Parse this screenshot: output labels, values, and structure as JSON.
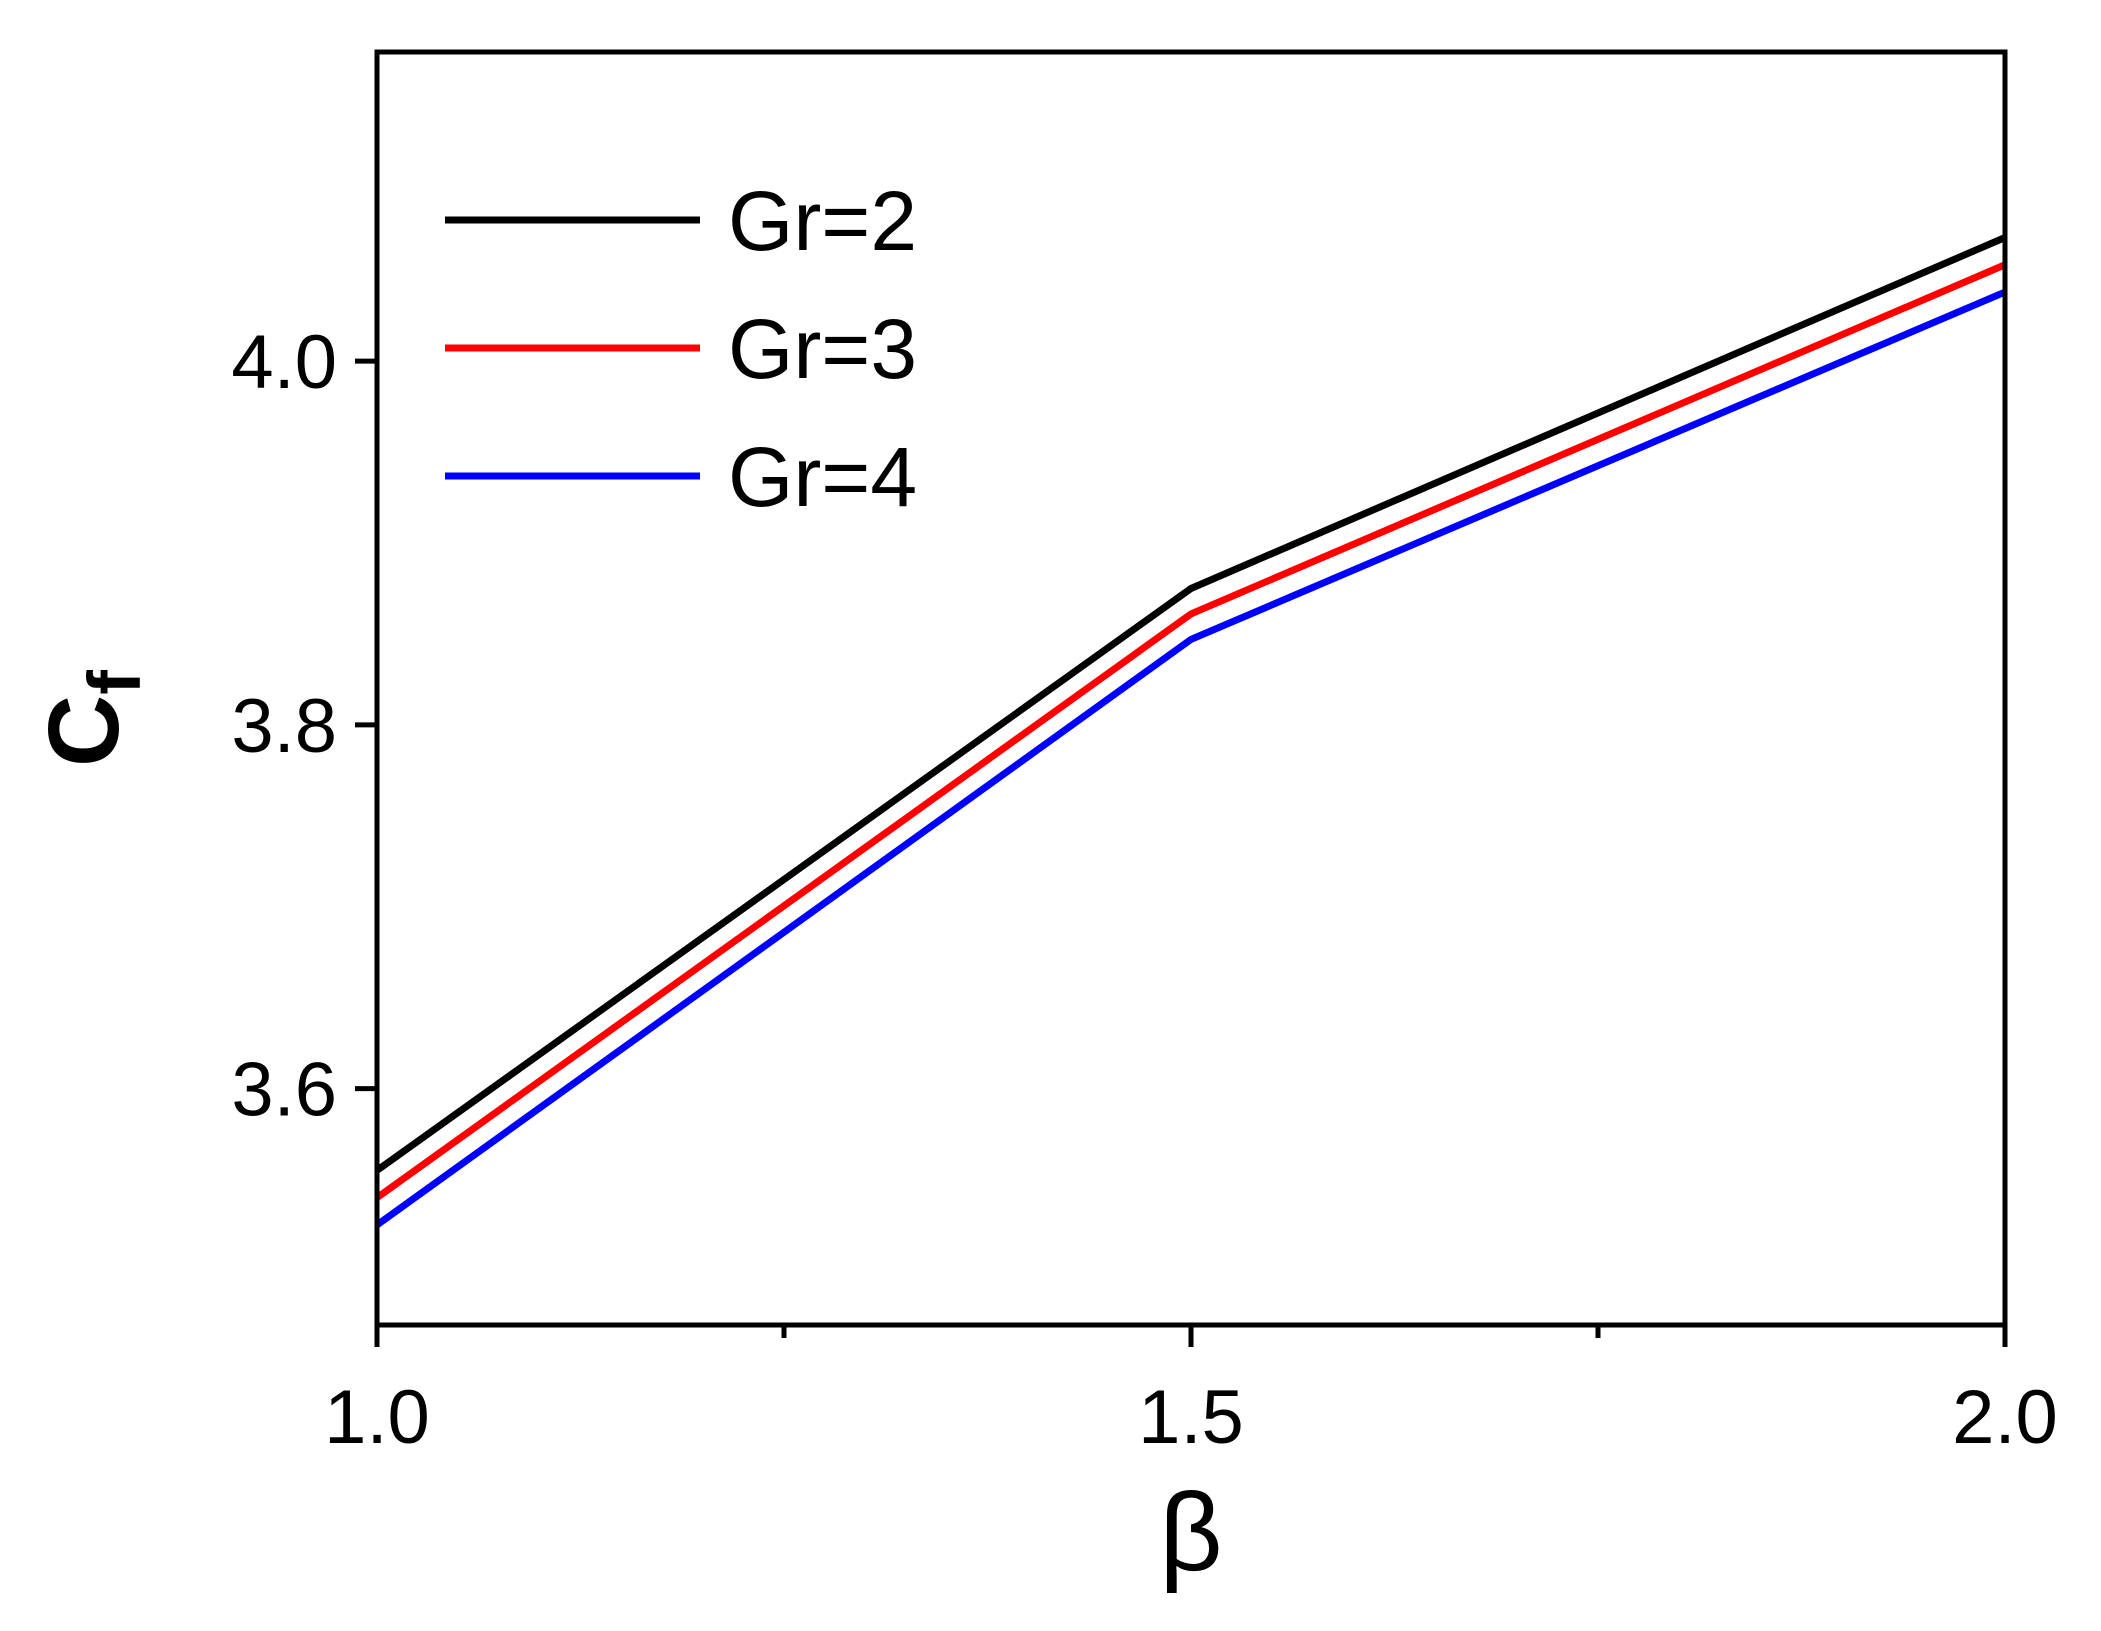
{
  "chart_data": {
    "type": "line",
    "title": "",
    "xlabel": "β",
    "ylabel": "C",
    "ylabel_subscript": "f",
    "xlim": [
      1.0,
      2.0
    ],
    "ylim": [
      3.47,
      4.17
    ],
    "x_major_ticks": [
      1.0,
      1.5,
      2.0
    ],
    "x_tick_labels": [
      "1.0",
      "1.5",
      "2.0"
    ],
    "x_minor_ticks": [
      1.25,
      1.75
    ],
    "y_major_ticks": [
      3.6,
      3.8,
      4.0
    ],
    "y_tick_labels": [
      "3.6",
      "3.8",
      "4.0"
    ],
    "grid": false,
    "legend_position": "top-left",
    "x": [
      1.0,
      1.5,
      2.0
    ],
    "series": [
      {
        "name": "Gr=2",
        "color": "#000000",
        "values": [
          3.555,
          3.875,
          4.068
        ]
      },
      {
        "name": "Gr=3",
        "color": "#ff0000",
        "values": [
          3.54,
          3.861,
          4.053
        ]
      },
      {
        "name": "Gr=4",
        "color": "#0000ff",
        "values": [
          3.525,
          3.847,
          4.038
        ]
      }
    ]
  }
}
